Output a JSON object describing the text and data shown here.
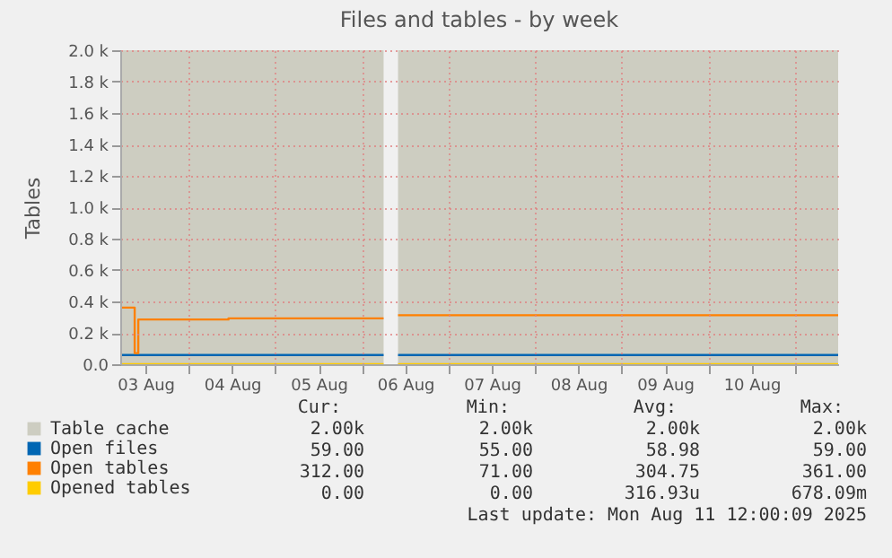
{
  "chart_data": {
    "type": "step",
    "title": "Files and tables - by week",
    "ylabel": "Tables",
    "x": [
      "2025-08-03T05:00",
      "2025-08-03T09:00",
      "2025-08-03T10:00",
      "2025-08-03T10:30",
      "2025-08-04T11:00",
      "2025-08-06T06:00",
      "2025-08-06T08:00",
      "2025-08-06T10:00",
      "2025-08-11T12:00"
    ],
    "series": [
      {
        "name": "Table cache",
        "type": "area",
        "color": "#cdcdc1",
        "values": [
          2000,
          2000,
          2000,
          2000,
          2000,
          2000,
          null,
          2000,
          2000
        ]
      },
      {
        "name": "Open files",
        "color": "#0066b3",
        "values": [
          59,
          59,
          59,
          59,
          59,
          59,
          null,
          59,
          59
        ]
      },
      {
        "name": "Open tables",
        "color": "#ff8000",
        "values": [
          361,
          71,
          285,
          285,
          292,
          292,
          null,
          312,
          312
        ]
      },
      {
        "name": "Opened tables",
        "color": "#ffcc00",
        "values": [
          0,
          0,
          0,
          0,
          0,
          0,
          null,
          0,
          0
        ]
      }
    ],
    "xlim": [
      "2025-08-03T05:00",
      "2025-08-11T12:00"
    ],
    "xticks": [
      {
        "value": "2025-08-03T12:00",
        "label": "03 Aug"
      },
      {
        "value": "2025-08-04T00:00",
        "label": null
      },
      {
        "value": "2025-08-04T12:00",
        "label": "04 Aug"
      },
      {
        "value": "2025-08-05T00:00",
        "label": null
      },
      {
        "value": "2025-08-05T12:00",
        "label": "05 Aug"
      },
      {
        "value": "2025-08-06T00:00",
        "label": null
      },
      {
        "value": "2025-08-06T12:00",
        "label": "06 Aug"
      },
      {
        "value": "2025-08-07T00:00",
        "label": null
      },
      {
        "value": "2025-08-07T12:00",
        "label": "07 Aug"
      },
      {
        "value": "2025-08-08T00:00",
        "label": null
      },
      {
        "value": "2025-08-08T12:00",
        "label": "08 Aug"
      },
      {
        "value": "2025-08-09T00:00",
        "label": null
      },
      {
        "value": "2025-08-09T12:00",
        "label": "09 Aug"
      },
      {
        "value": "2025-08-10T00:00",
        "label": null
      },
      {
        "value": "2025-08-10T12:00",
        "label": "10 Aug"
      },
      {
        "value": "2025-08-11T00:00",
        "label": null
      }
    ],
    "ylim": [
      0,
      2000
    ],
    "yticks": [
      {
        "value": 0,
        "label": "0.0"
      },
      {
        "value": 200,
        "label": "0.2 k"
      },
      {
        "value": 400,
        "label": "0.4 k"
      },
      {
        "value": 600,
        "label": "0.6 k"
      },
      {
        "value": 800,
        "label": "0.8 k"
      },
      {
        "value": 1000,
        "label": "1.0 k"
      },
      {
        "value": 1200,
        "label": "1.2 k"
      },
      {
        "value": 1400,
        "label": "1.4 k"
      },
      {
        "value": 1600,
        "label": "1.6 k"
      },
      {
        "value": 1800,
        "label": "1.8 k"
      },
      {
        "value": 2000,
        "label": "2.0 k"
      }
    ],
    "grid": true,
    "legend": "bottom left",
    "annotations": [
      "Cur:",
      "Min:",
      "Avg:",
      "Max:",
      "2.00k",
      "2.00k",
      "2.00k",
      "2.00k",
      "59.00",
      "55.00",
      "58.98",
      "59.00",
      "312.00",
      "71.00",
      "304.75",
      "361.00",
      "0.00",
      "0.00",
      "316.93u",
      "678.09m",
      "Last update: Mon Aug 11 12:00:09 2025"
    ]
  }
}
